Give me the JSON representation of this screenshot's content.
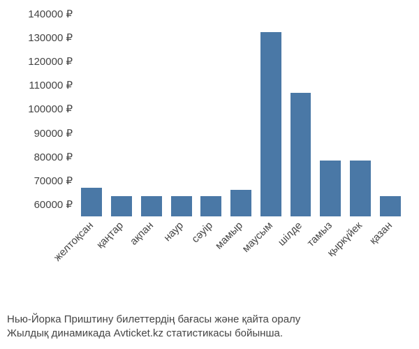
{
  "chart": {
    "type": "bar",
    "currency_suffix": " ₽",
    "ylim": [
      55000,
      140000
    ],
    "ytick_step": 10000,
    "yticks": [
      60000,
      70000,
      80000,
      90000,
      100000,
      110000,
      120000,
      130000,
      140000
    ],
    "ytick_labels": [
      "60000 ₽",
      "70000 ₽",
      "80000 ₽",
      "90000 ₽",
      "100000 ₽",
      "110000 ₽",
      "120000 ₽",
      "130000 ₽",
      "140000 ₽"
    ],
    "categories": [
      "желтоқсан",
      "қаңтар",
      "ақпан",
      "наур",
      "сәуір",
      "мамыр",
      "маусым",
      "шілде",
      "тамыз",
      "қыркүйек",
      "қазан"
    ],
    "values": [
      67000,
      63500,
      63500,
      63500,
      63500,
      66000,
      132500,
      107000,
      78500,
      78500,
      63500
    ],
    "bar_color": "#4a78a6",
    "bar_width": 0.7,
    "background_color": "#ffffff",
    "text_color": "#444444",
    "label_fontsize": 15,
    "xlabel_rotation": -45
  },
  "caption": {
    "line1": "Нью-Йорка Приштину билеттердің бағасы және қайта оралу",
    "line2": "Жылдық динамикада Avticket.kz статистикасы бойынша."
  }
}
